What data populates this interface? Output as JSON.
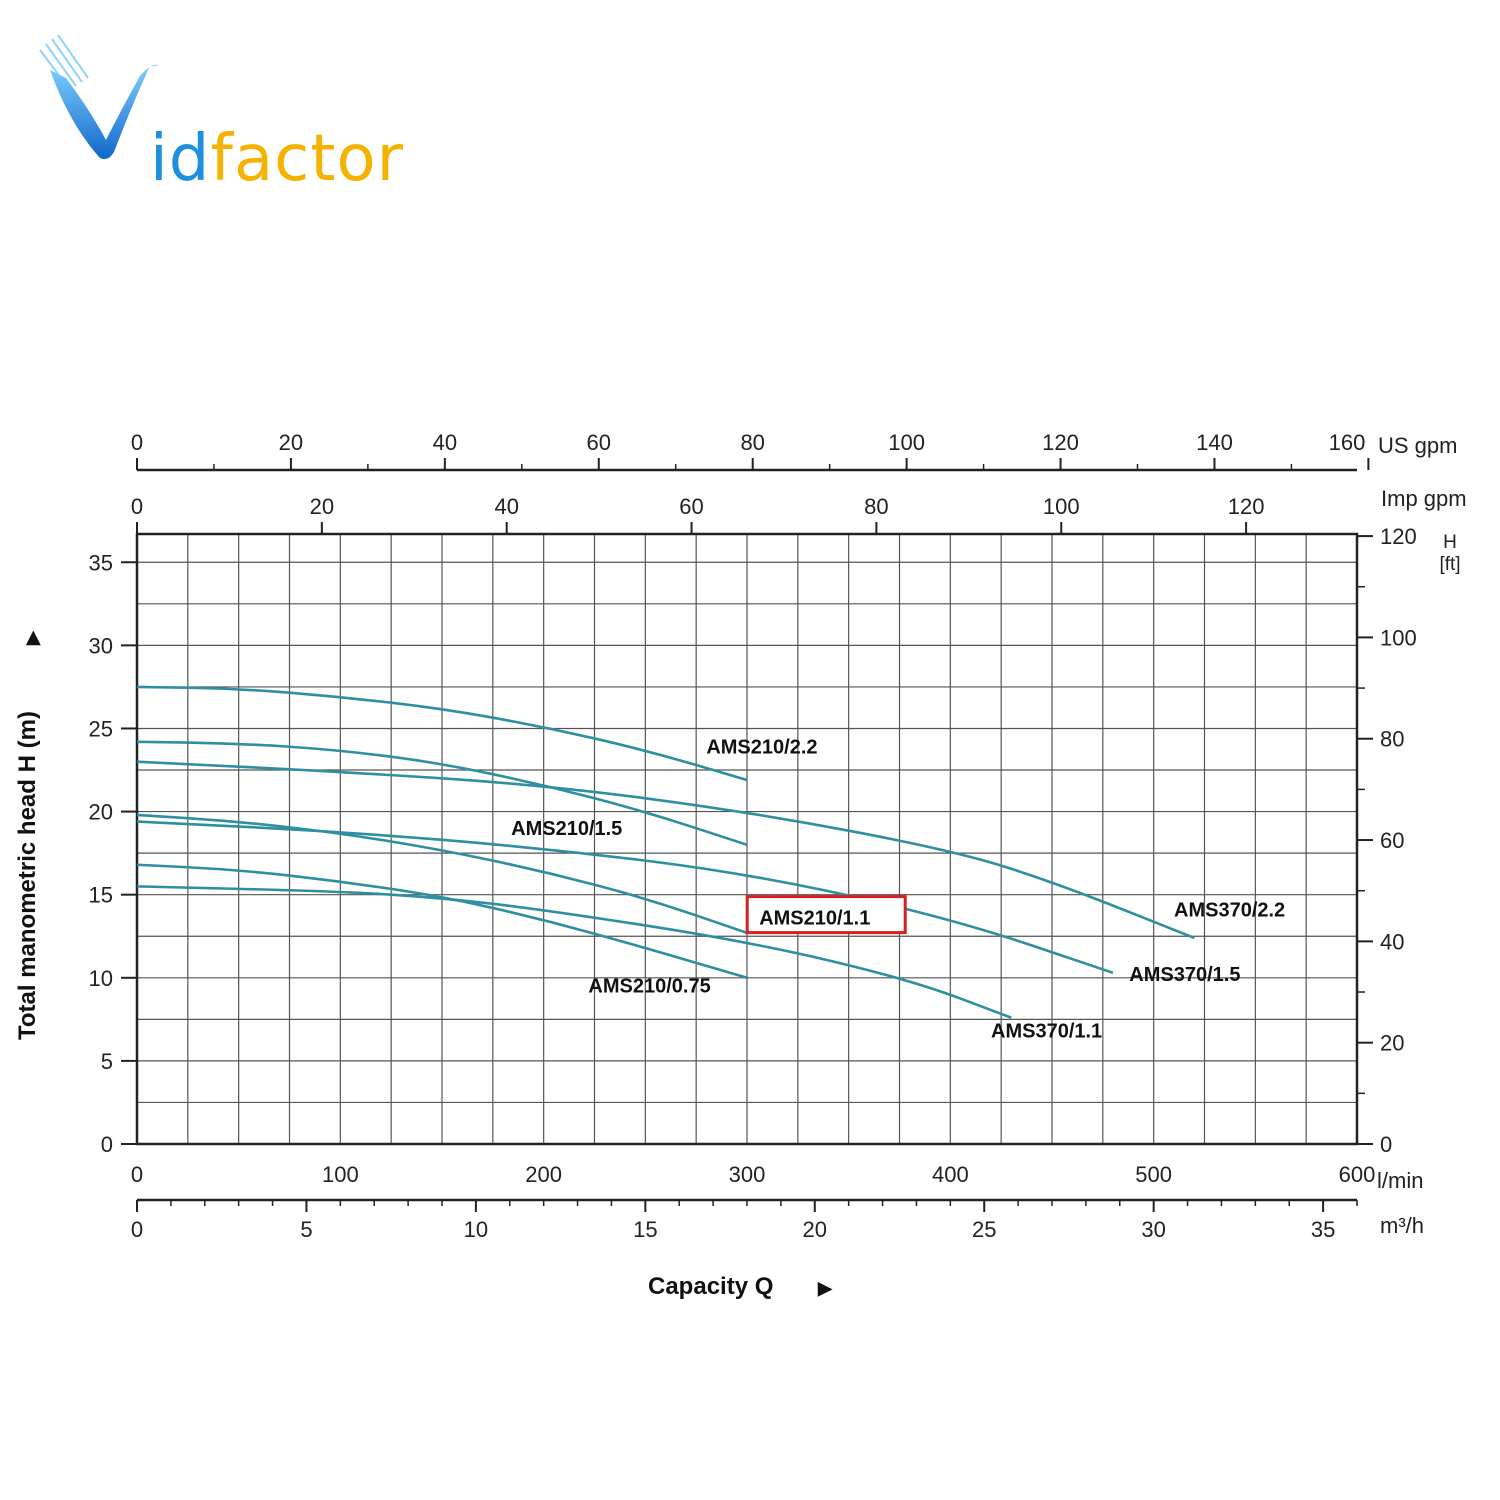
{
  "brand": {
    "logo_first": "V",
    "logo_blue": "id",
    "logo_rest": "factor",
    "accent_blue": "#1f8fe0",
    "accent_yellow": "#f5b200"
  },
  "chart_data": {
    "type": "line",
    "title": "",
    "xlabel": "Capacity Q",
    "ylabel": "Total manometric head H (m)",
    "x_unit": "l/min",
    "y_unit": "m",
    "xlim": [
      0,
      600
    ],
    "ylim": [
      0,
      36.7
    ],
    "grid": true,
    "curve_color": "#2e8fa0",
    "highlight_color": "#d62020",
    "x_ticks": [
      0,
      100,
      200,
      300,
      400,
      500,
      600
    ],
    "y_ticks": [
      0,
      5,
      10,
      15,
      20,
      25,
      30,
      35
    ],
    "secondary_axes": {
      "m3h": {
        "unit": "m³/h",
        "ticks": [
          0,
          5,
          10,
          15,
          20,
          25,
          30,
          35
        ],
        "per_lmin": 0.06
      },
      "us_gpm": {
        "unit": "US gpm",
        "ticks": [
          0,
          20,
          40,
          60,
          80,
          100,
          120,
          140,
          160
        ],
        "per_lmin": 0.2642
      },
      "imp_gpm": {
        "unit": "Imp gpm",
        "ticks": [
          0,
          20,
          40,
          60,
          80,
          100,
          120
        ],
        "per_lmin": 0.22
      },
      "h_ft": {
        "unit_top": "H",
        "unit_bottom": "[ft]",
        "ticks": [
          0,
          20,
          40,
          60,
          80,
          100,
          120
        ],
        "per_m": 3.281
      }
    },
    "series": [
      {
        "name": "AMS210/2.2",
        "x": [
          0,
          50,
          100,
          150,
          200,
          250,
          300
        ],
        "y": [
          27.5,
          27.4,
          26.9,
          26.2,
          25.1,
          23.7,
          21.9
        ]
      },
      {
        "name": "AMS210/1.5",
        "x": [
          0,
          50,
          100,
          150,
          200,
          250,
          300
        ],
        "y": [
          24.2,
          24.1,
          23.7,
          22.9,
          21.6,
          20.0,
          18.0
        ]
      },
      {
        "name": "AMS370/2.2",
        "x": [
          0,
          100,
          200,
          300,
          400,
          450,
          520
        ],
        "y": [
          23.0,
          22.4,
          21.6,
          20.0,
          17.7,
          15.8,
          12.4
        ]
      },
      {
        "name": "AMS370/1.5",
        "x": [
          0,
          100,
          200,
          300,
          400,
          480
        ],
        "y": [
          19.4,
          18.8,
          17.8,
          16.3,
          13.6,
          10.3
        ]
      },
      {
        "name": "AMS210/1.1",
        "x": [
          0,
          50,
          100,
          150,
          200,
          250,
          300
        ],
        "y": [
          19.8,
          19.4,
          18.7,
          17.7,
          16.4,
          14.8,
          12.7
        ]
      },
      {
        "name": "AMS370/1.1",
        "x": [
          0,
          100,
          150,
          200,
          300,
          380,
          430
        ],
        "y": [
          15.5,
          15.2,
          14.8,
          14.1,
          12.2,
          9.9,
          7.6
        ]
      },
      {
        "name": "AMS210/0.75",
        "x": [
          0,
          50,
          100,
          150,
          200,
          250,
          300
        ],
        "y": [
          16.8,
          16.5,
          15.8,
          14.9,
          13.5,
          11.8,
          10.0
        ]
      }
    ],
    "labels": [
      {
        "text": "AMS210/2.2",
        "x": 280,
        "y": 23.5,
        "highlight": false
      },
      {
        "text": "AMS210/1.5",
        "x": 184,
        "y": 18.6,
        "highlight": false
      },
      {
        "text": "AMS210/1.1",
        "x": 306,
        "y": 13.2,
        "highlight": true
      },
      {
        "text": "AMS210/0.75",
        "x": 222,
        "y": 9.1,
        "highlight": false
      },
      {
        "text": "AMS370/2.2",
        "x": 510,
        "y": 13.7,
        "highlight": false
      },
      {
        "text": "AMS370/1.5",
        "x": 488,
        "y": 9.8,
        "highlight": false
      },
      {
        "text": "AMS370/1.1",
        "x": 420,
        "y": 6.4,
        "highlight": false
      }
    ]
  }
}
